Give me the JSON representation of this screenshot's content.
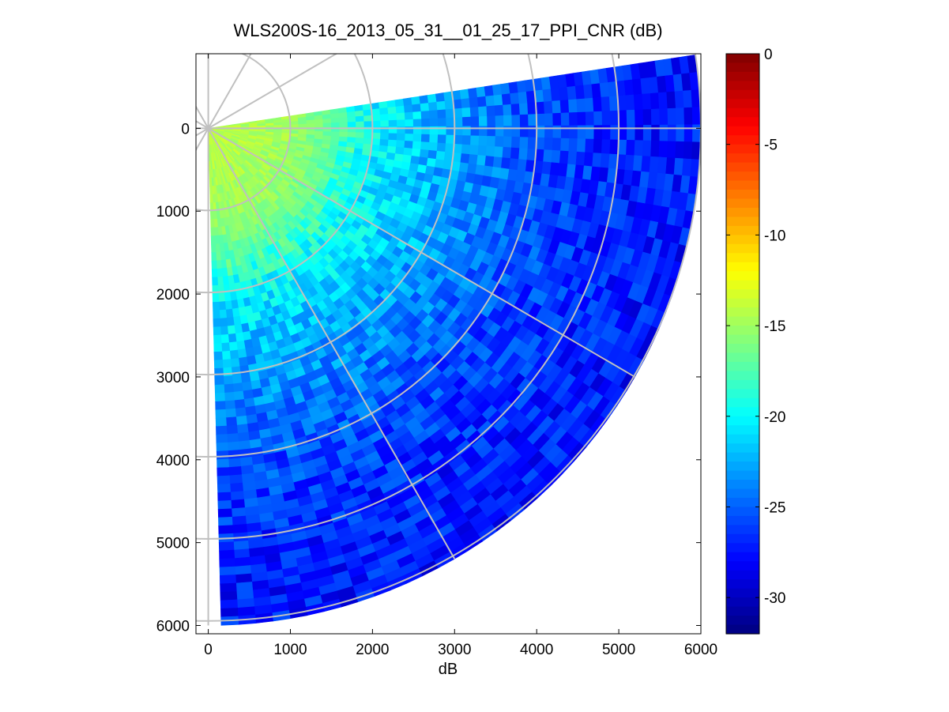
{
  "chart_data": {
    "type": "heatmap",
    "plot_kind": "polar PPI scan (sector)",
    "title": "WLS200S-16_2013_05_31__01_25_17_PPI_CNR (dB)",
    "xlabel": "dB",
    "ylabel": "",
    "xlim": [
      -150,
      6000
    ],
    "ylim": [
      -900,
      6100
    ],
    "y_axis_reversed": true,
    "x_ticks": [
      "0",
      "1000",
      "2000",
      "3000",
      "4000",
      "5000",
      "6000"
    ],
    "y_ticks": [
      "0",
      "1000",
      "2000",
      "3000",
      "4000",
      "5000",
      "6000"
    ],
    "sector": {
      "range_min_m": 0,
      "range_max_m": 6000,
      "azimuth_start_deg": -8.5,
      "azimuth_end_deg": 88.5,
      "cnr_by_range_m": [
        [
          0,
          -14
        ],
        [
          1000,
          -15
        ],
        [
          1500,
          -17
        ],
        [
          2000,
          -20
        ],
        [
          3000,
          -23
        ],
        [
          4000,
          -25.5
        ],
        [
          5000,
          -27
        ],
        [
          6000,
          -27.5
        ]
      ]
    },
    "polar_grid": {
      "range_rings_m": [
        1000,
        2000,
        3000,
        4000,
        5000,
        6000
      ],
      "spoke_angles_deg": [
        0,
        30,
        60,
        90,
        120,
        150,
        180,
        210,
        240,
        270,
        300,
        330
      ]
    },
    "colorbar": {
      "colormap": "jet",
      "min": -32,
      "max": 0,
      "ticks": [
        "0",
        "-5",
        "-10",
        "-15",
        "-20",
        "-25",
        "-30"
      ],
      "tick_values": [
        0,
        -5,
        -10,
        -15,
        -20,
        -25,
        -30
      ]
    }
  }
}
